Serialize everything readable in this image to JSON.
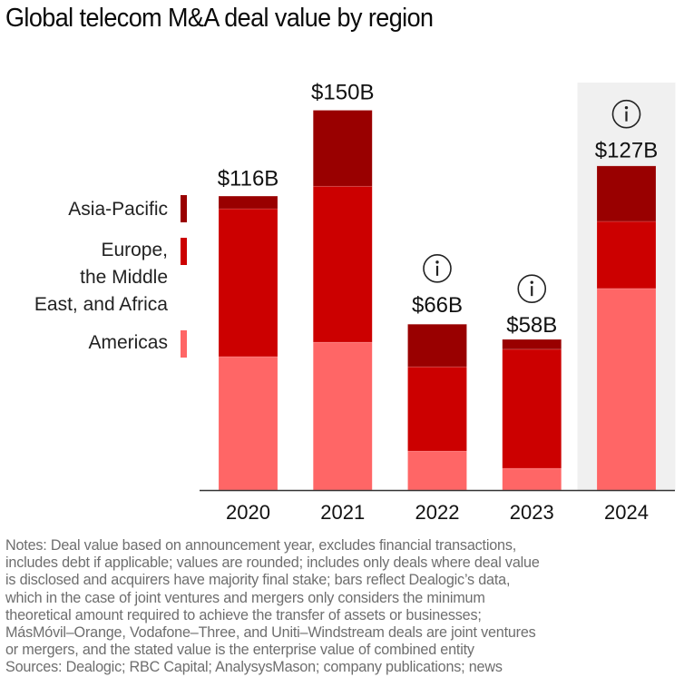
{
  "chart_data": {
    "type": "bar",
    "stacked": true,
    "title": "Global telecom M&A deal value by region",
    "xlabel": "",
    "ylabel": "",
    "ylim": [
      0,
      150
    ],
    "grid": false,
    "legend_position": "left",
    "categories": [
      "2020",
      "2021",
      "2022",
      "2023",
      "2024"
    ],
    "series": [
      {
        "name": "Americas",
        "color": "#ff6666",
        "values": [
          52.7,
          58.4,
          15.4,
          8.6,
          79.6
        ]
      },
      {
        "name": "Europe, the Middle East, and Africa",
        "color": "#cc0000",
        "values": [
          58.4,
          61.6,
          33.3,
          47.0,
          26.5
        ]
      },
      {
        "name": "Asia-Pacific",
        "color": "#990000",
        "values": [
          5.0,
          30.0,
          16.8,
          3.9,
          21.9
        ]
      }
    ],
    "totals": [
      116,
      150,
      66,
      58,
      127
    ],
    "total_labels": [
      "$116B",
      "$150B",
      "$66B",
      "$58B",
      "$127B"
    ],
    "info_icon": [
      false,
      false,
      true,
      true,
      true
    ],
    "highlighted_category": "2024",
    "highlight_color": "#f0f0f0"
  },
  "legend": [
    {
      "lines": [
        "Asia-Pacific"
      ],
      "color": "#990000"
    },
    {
      "lines": [
        "Europe,",
        "the Middle",
        "East, and Africa"
      ],
      "color": "#cc0000"
    },
    {
      "lines": [
        "Americas"
      ],
      "color": "#ff6666"
    }
  ],
  "notes": {
    "lines": [
      "Notes: Deal value based on announcement year, excludes financial transactions,",
      "includes debt if applicable; values are rounded; includes only deals where deal value",
      "is disclosed and acquirers have majority final stake; bars reflect Dealogic’s data,",
      "which in the case of joint ventures and mergers only considers the minimum",
      "theoretical amount required to achieve the transfer of assets or businesses;",
      "MásMóvil–Orange, Vodafone–Three, and Uniti–Windstream deals are joint ventures",
      "or mergers, and the stated value is the enterprise value of combined entity",
      "Sources: Dealogic; RBC Capital; AnalysysMason; company publications; news"
    ]
  }
}
